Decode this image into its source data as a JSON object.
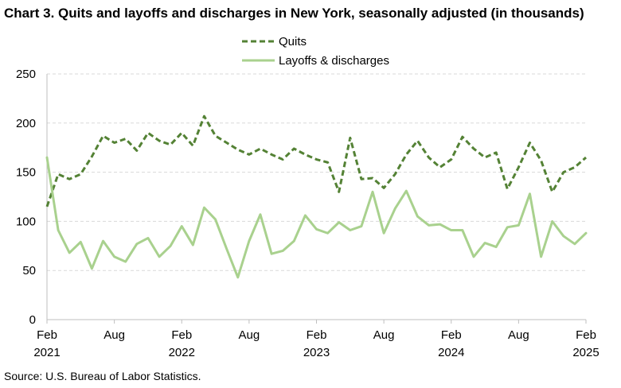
{
  "chart_data": {
    "type": "line",
    "title": "Chart 3. Quits and layoffs and discharges in New York, seasonally adjusted (in thousands)",
    "xlabel": "",
    "ylabel": "",
    "ylim": [
      0,
      250
    ],
    "yticks": [
      0,
      50,
      100,
      150,
      200,
      250
    ],
    "grid": true,
    "legend_position": "top-center",
    "x": [
      "2021-02",
      "2021-03",
      "2021-04",
      "2021-05",
      "2021-06",
      "2021-07",
      "2021-08",
      "2021-09",
      "2021-10",
      "2021-11",
      "2021-12",
      "2022-01",
      "2022-02",
      "2022-03",
      "2022-04",
      "2022-05",
      "2022-06",
      "2022-07",
      "2022-08",
      "2022-09",
      "2022-10",
      "2022-11",
      "2022-12",
      "2023-01",
      "2023-02",
      "2023-03",
      "2023-04",
      "2023-05",
      "2023-06",
      "2023-07",
      "2023-08",
      "2023-09",
      "2023-10",
      "2023-11",
      "2023-12",
      "2024-01",
      "2024-02",
      "2024-03",
      "2024-04",
      "2024-05",
      "2024-06",
      "2024-07",
      "2024-08",
      "2024-09",
      "2024-10",
      "2024-11",
      "2024-12",
      "2025-01",
      "2025-02"
    ],
    "xtick_labels": [
      {
        "month": "Feb",
        "year": "2021"
      },
      {
        "month": "Aug",
        "year": ""
      },
      {
        "month": "Feb",
        "year": "2022"
      },
      {
        "month": "Aug",
        "year": ""
      },
      {
        "month": "Feb",
        "year": "2023"
      },
      {
        "month": "Aug",
        "year": ""
      },
      {
        "month": "Feb",
        "year": "2024"
      },
      {
        "month": "Aug",
        "year": ""
      },
      {
        "month": "Feb",
        "year": "2025"
      }
    ],
    "series": [
      {
        "name": "Quits",
        "color": "#548235",
        "style": "dashed",
        "values": [
          115,
          148,
          143,
          148,
          166,
          187,
          180,
          184,
          172,
          190,
          182,
          178,
          190,
          177,
          207,
          187,
          180,
          173,
          168,
          174,
          168,
          163,
          174,
          168,
          163,
          160,
          130,
          185,
          143,
          144,
          134,
          148,
          168,
          182,
          165,
          155,
          163,
          186,
          174,
          165,
          170,
          133,
          155,
          180,
          162,
          130,
          150,
          155,
          165
        ]
      },
      {
        "name": "Layoffs & discharges",
        "color": "#a9d18e",
        "style": "solid",
        "values": [
          165,
          91,
          68,
          79,
          52,
          80,
          64,
          59,
          77,
          83,
          64,
          75,
          95,
          76,
          114,
          102,
          72,
          43,
          80,
          107,
          67,
          70,
          80,
          106,
          92,
          88,
          99,
          91,
          95,
          130,
          88,
          113,
          131,
          105,
          96,
          97,
          91,
          91,
          64,
          78,
          74,
          94,
          96,
          128,
          64,
          100,
          85,
          77,
          88
        ]
      }
    ]
  },
  "source": "Source: U.S. Bureau of Labor Statistics."
}
